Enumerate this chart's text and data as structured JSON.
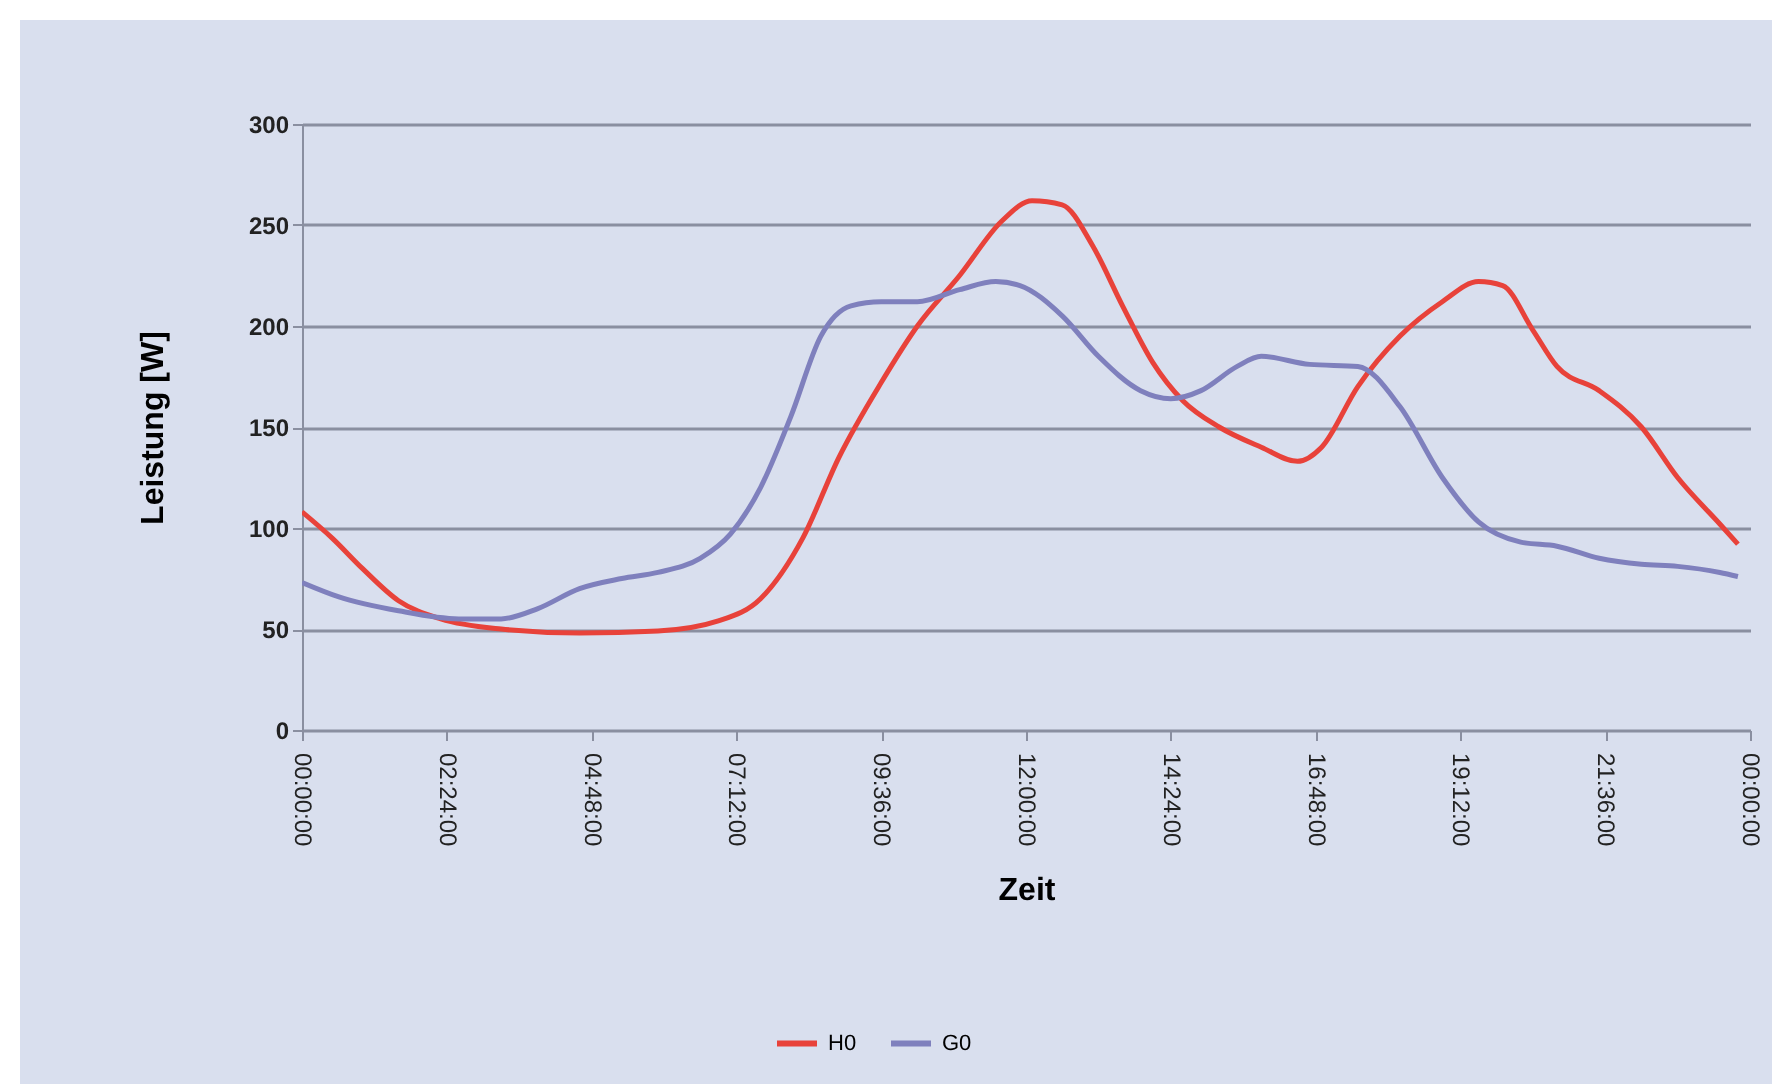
{
  "chart_data": {
    "type": "line",
    "xlabel": "Zeit",
    "ylabel": "Leistung [W]",
    "xlim": [
      "2000-01-01T00:00",
      "2000-01-02T00:00"
    ],
    "ylim": [
      0,
      300
    ],
    "xticks": [
      {
        "value": "2000-01-01T00:00",
        "label": "00:00:00"
      },
      {
        "value": "2000-01-01T02:24",
        "label": "02:24:00"
      },
      {
        "value": "2000-01-01T04:48",
        "label": "04:48:00"
      },
      {
        "value": "2000-01-01T07:12",
        "label": "07:12:00"
      },
      {
        "value": "2000-01-01T09:36",
        "label": "09:36:00"
      },
      {
        "value": "2000-01-01T12:00",
        "label": "12:00:00"
      },
      {
        "value": "2000-01-01T14:24",
        "label": "14:24:00"
      },
      {
        "value": "2000-01-01T16:48",
        "label": "16:48:00"
      },
      {
        "value": "2000-01-01T19:12",
        "label": "19:12:00"
      },
      {
        "value": "2000-01-01T21:36",
        "label": "21:36:00"
      },
      {
        "value": "2000-01-02T00:00",
        "label": "00:00:00"
      }
    ],
    "yticks": [
      0,
      50,
      100,
      150,
      200,
      250,
      300
    ],
    "grid": "y",
    "legend": "bottom",
    "marker": "none",
    "line_style": "solid",
    "series": [
      {
        "name": "H0",
        "color": "#e8423a",
        "x": [
          "2000-01-01T00:00",
          "2000-01-01T00:30",
          "2000-01-01T01:00",
          "2000-01-01T01:36",
          "2000-01-01T02:18",
          "2000-01-01T03:18",
          "2000-01-01T04:36",
          "2000-01-01T05:54",
          "2000-01-01T06:54",
          "2000-01-01T07:36",
          "2000-01-01T08:18",
          "2000-01-01T08:54",
          "2000-01-01T09:36",
          "2000-01-01T10:12",
          "2000-01-01T10:54",
          "2000-01-01T11:36",
          "2000-01-01T12:06",
          "2000-01-01T12:36",
          "2000-01-01T13:06",
          "2000-01-01T13:36",
          "2000-01-01T14:06",
          "2000-01-01T14:36",
          "2000-01-01T15:12",
          "2000-01-01T15:54",
          "2000-01-01T16:30",
          "2000-01-01T16:54",
          "2000-01-01T17:30",
          "2000-01-01T18:12",
          "2000-01-01T18:54",
          "2000-01-01T19:30",
          "2000-01-01T19:54",
          "2000-01-01T20:24",
          "2000-01-01T20:48",
          "2000-01-01T21:30",
          "2000-01-01T22:12",
          "2000-01-01T22:48",
          "2000-01-01T23:30",
          "2000-01-01T23:48"
        ],
        "values": [
          108,
          95,
          80,
          64,
          55,
          50,
          48,
          49,
          54,
          65,
          95,
          135,
          172,
          200,
          225,
          252,
          262,
          260,
          240,
          210,
          182,
          163,
          150,
          140,
          133,
          140,
          170,
          195,
          212,
          222,
          220,
          198,
          180,
          168,
          150,
          125,
          102,
          92
        ]
      },
      {
        "name": "G0",
        "color": "#7f80bd",
        "x": [
          "2000-01-01T00:00",
          "2000-01-01T00:36",
          "2000-01-01T01:36",
          "2000-01-01T02:36",
          "2000-01-01T03:18",
          "2000-01-01T03:54",
          "2000-01-01T04:36",
          "2000-01-01T05:18",
          "2000-01-01T05:54",
          "2000-01-01T06:36",
          "2000-01-01T07:06",
          "2000-01-01T07:36",
          "2000-01-01T08:06",
          "2000-01-01T08:36",
          "2000-01-01T09:06",
          "2000-01-01T09:36",
          "2000-01-01T10:12",
          "2000-01-01T10:54",
          "2000-01-01T11:30",
          "2000-01-01T11:54",
          "2000-01-01T12:36",
          "2000-01-01T13:12",
          "2000-01-01T13:54",
          "2000-01-01T14:24",
          "2000-01-01T14:54",
          "2000-01-01T15:30",
          "2000-01-01T15:54",
          "2000-01-01T16:42",
          "2000-01-01T17:30",
          "2000-01-01T18:12",
          "2000-01-01T18:54",
          "2000-01-01T19:30",
          "2000-01-01T20:12",
          "2000-01-01T20:48",
          "2000-01-01T21:30",
          "2000-01-01T22:12",
          "2000-01-01T22:48",
          "2000-01-01T23:30",
          "2000-01-01T23:48"
        ],
        "values": [
          73,
          66,
          59,
          55,
          55,
          60,
          70,
          75,
          78,
          85,
          97,
          120,
          155,
          195,
          210,
          212,
          212,
          218,
          222,
          220,
          205,
          185,
          168,
          164,
          168,
          180,
          185,
          181,
          180,
          160,
          125,
          103,
          93,
          91,
          85,
          82,
          81,
          78,
          76
        ]
      }
    ]
  }
}
